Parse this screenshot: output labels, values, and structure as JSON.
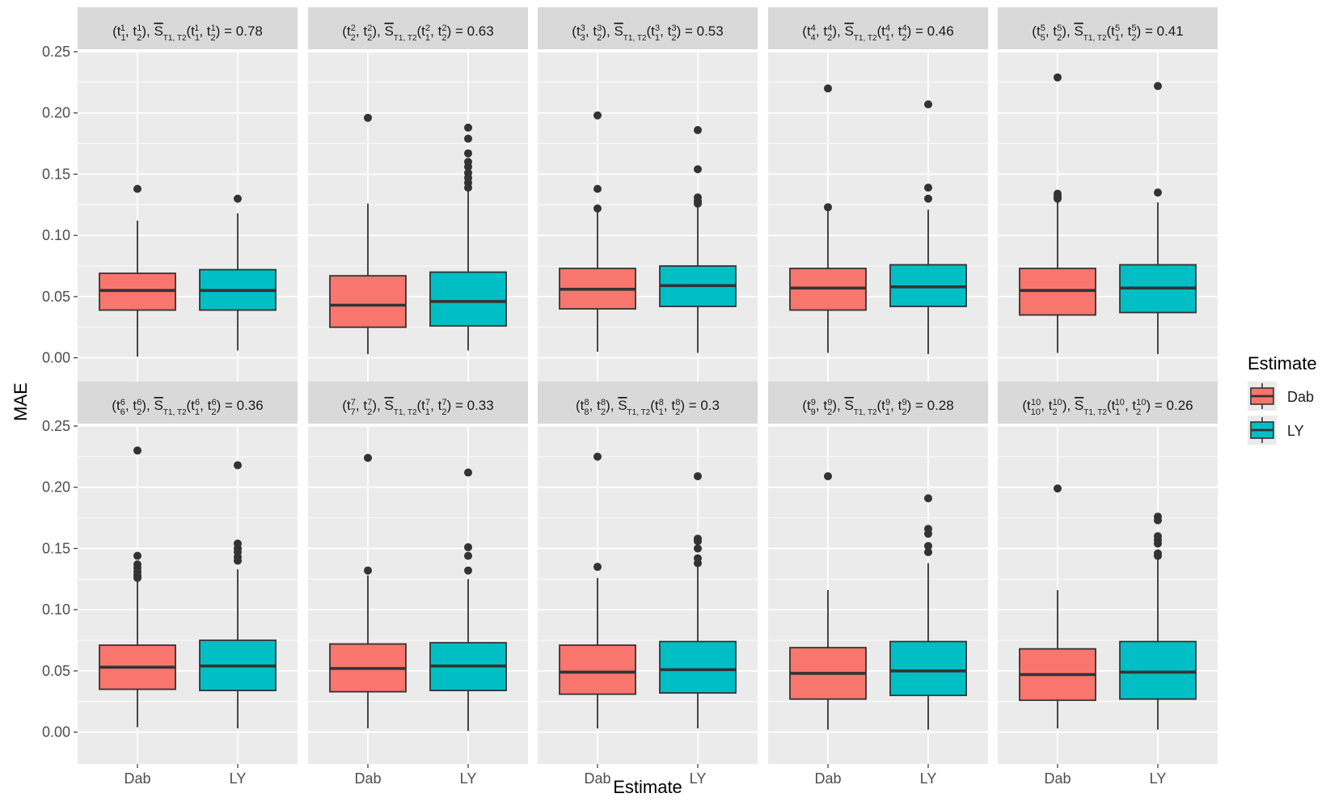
{
  "chart_data": {
    "type": "boxplot",
    "layout": "facet-grid-2x5",
    "x_title": "Estimate",
    "y_title": "MAE",
    "categories": [
      "Dab",
      "LY"
    ],
    "y_ticks": [
      "0.00",
      "0.05",
      "0.10",
      "0.15",
      "0.20",
      "0.25"
    ],
    "y_tick_values": [
      0,
      0.05,
      0.1,
      0.15,
      0.2,
      0.25
    ],
    "ylim": [
      -0.026,
      0.25
    ],
    "legend": {
      "title": "Estimate",
      "position": "right",
      "entries": [
        {
          "label": "Dab",
          "color": "#F8766D"
        },
        {
          "label": "LY",
          "color": "#00BFC4"
        }
      ]
    },
    "panel_title_prefix": "S",
    "panel_title_subscript": "T1, T2",
    "panels": [
      {
        "index": "1",
        "value_label": "= 0.78",
        "boxes": [
          {
            "q1": 0.039,
            "median": 0.055,
            "q3": 0.069,
            "lower": 0.001,
            "upper": 0.112,
            "outliers": [
              0.138
            ]
          },
          {
            "q1": 0.039,
            "median": 0.055,
            "q3": 0.072,
            "lower": 0.006,
            "upper": 0.118,
            "outliers": [
              0.13
            ]
          }
        ]
      },
      {
        "index": "2",
        "value_label": "= 0.63",
        "boxes": [
          {
            "q1": 0.025,
            "median": 0.043,
            "q3": 0.067,
            "lower": 0.003,
            "upper": 0.126,
            "outliers": [
              0.196
            ]
          },
          {
            "q1": 0.026,
            "median": 0.046,
            "q3": 0.07,
            "lower": 0.006,
            "upper": 0.136,
            "outliers": [
              0.139,
              0.143,
              0.147,
              0.151,
              0.156,
              0.16,
              0.167,
              0.179,
              0.188
            ]
          }
        ]
      },
      {
        "index": "3",
        "value_label": "= 0.53",
        "boxes": [
          {
            "q1": 0.04,
            "median": 0.056,
            "q3": 0.073,
            "lower": 0.005,
            "upper": 0.12,
            "outliers": [
              0.122,
              0.138,
              0.198
            ]
          },
          {
            "q1": 0.042,
            "median": 0.059,
            "q3": 0.075,
            "lower": 0.004,
            "upper": 0.123,
            "outliers": [
              0.126,
              0.128,
              0.131,
              0.154,
              0.186
            ]
          }
        ]
      },
      {
        "index": "4",
        "value_label": "= 0.46",
        "boxes": [
          {
            "q1": 0.039,
            "median": 0.057,
            "q3": 0.073,
            "lower": 0.004,
            "upper": 0.121,
            "outliers": [
              0.123,
              0.22
            ]
          },
          {
            "q1": 0.042,
            "median": 0.058,
            "q3": 0.076,
            "lower": 0.003,
            "upper": 0.121,
            "outliers": [
              0.13,
              0.139,
              0.207
            ]
          }
        ]
      },
      {
        "index": "5",
        "value_label": "= 0.41",
        "boxes": [
          {
            "q1": 0.035,
            "median": 0.055,
            "q3": 0.073,
            "lower": 0.004,
            "upper": 0.128,
            "outliers": [
              0.13,
              0.132,
              0.134,
              0.229
            ]
          },
          {
            "q1": 0.037,
            "median": 0.057,
            "q3": 0.076,
            "lower": 0.003,
            "upper": 0.127,
            "outliers": [
              0.135,
              0.222
            ]
          }
        ]
      },
      {
        "index": "6",
        "value_label": "= 0.36",
        "boxes": [
          {
            "q1": 0.035,
            "median": 0.053,
            "q3": 0.071,
            "lower": 0.004,
            "upper": 0.124,
            "outliers": [
              0.126,
              0.128,
              0.131,
              0.134,
              0.137,
              0.144,
              0.23
            ]
          },
          {
            "q1": 0.034,
            "median": 0.054,
            "q3": 0.075,
            "lower": 0.003,
            "upper": 0.133,
            "outliers": [
              0.14,
              0.143,
              0.147,
              0.15,
              0.154,
              0.218
            ]
          }
        ]
      },
      {
        "index": "7",
        "value_label": "= 0.33",
        "boxes": [
          {
            "q1": 0.033,
            "median": 0.052,
            "q3": 0.072,
            "lower": 0.003,
            "upper": 0.128,
            "outliers": [
              0.132,
              0.224
            ]
          },
          {
            "q1": 0.034,
            "median": 0.054,
            "q3": 0.073,
            "lower": 0.001,
            "upper": 0.125,
            "outliers": [
              0.132,
              0.144,
              0.151,
              0.212
            ]
          }
        ]
      },
      {
        "index": "8",
        "value_label": "= 0.3",
        "boxes": [
          {
            "q1": 0.031,
            "median": 0.049,
            "q3": 0.071,
            "lower": 0.003,
            "upper": 0.126,
            "outliers": [
              0.135,
              0.225
            ]
          },
          {
            "q1": 0.032,
            "median": 0.051,
            "q3": 0.074,
            "lower": 0.003,
            "upper": 0.136,
            "outliers": [
              0.138,
              0.142,
              0.15,
              0.156,
              0.158,
              0.209
            ]
          }
        ]
      },
      {
        "index": "9",
        "value_label": "= 0.28",
        "boxes": [
          {
            "q1": 0.027,
            "median": 0.048,
            "q3": 0.069,
            "lower": 0.002,
            "upper": 0.116,
            "outliers": [
              0.209
            ]
          },
          {
            "q1": 0.03,
            "median": 0.05,
            "q3": 0.074,
            "lower": 0.002,
            "upper": 0.138,
            "outliers": [
              0.147,
              0.152,
              0.162,
              0.166,
              0.191
            ]
          }
        ]
      },
      {
        "index": "10",
        "value_label": "= 0.26",
        "boxes": [
          {
            "q1": 0.026,
            "median": 0.047,
            "q3": 0.068,
            "lower": 0.003,
            "upper": 0.116,
            "outliers": [
              0.199
            ]
          },
          {
            "q1": 0.027,
            "median": 0.049,
            "q3": 0.074,
            "lower": 0.002,
            "upper": 0.141,
            "outliers": [
              0.144,
              0.146,
              0.154,
              0.157,
              0.16,
              0.173,
              0.176
            ]
          }
        ]
      }
    ]
  }
}
